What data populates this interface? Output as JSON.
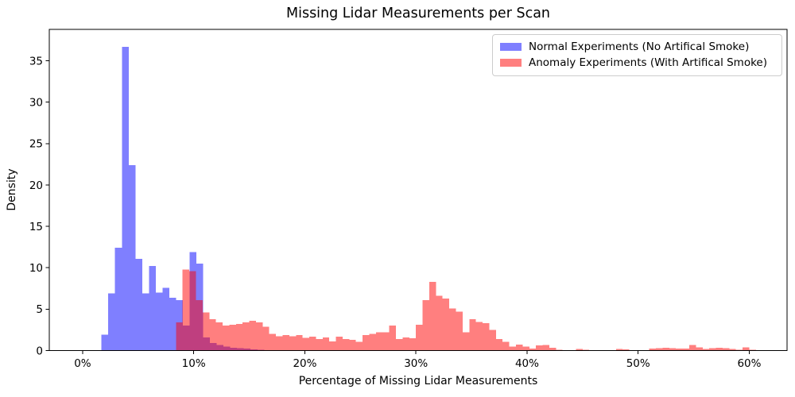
{
  "chart_data": {
    "type": "bar",
    "subtype": "overlaid-histogram",
    "title": "Missing Lidar Measurements per Scan",
    "xlabel": "Percentage of Missing Lidar Measurements",
    "ylabel": "Density",
    "xlim_pct": [
      -3.0,
      63.4
    ],
    "ylim": [
      0,
      38.8
    ],
    "x_ticks_pct": [
      0,
      10,
      20,
      30,
      40,
      50,
      60
    ],
    "x_tick_labels": [
      "0%",
      "10%",
      "20%",
      "30%",
      "40%",
      "50%",
      "60%"
    ],
    "y_ticks": [
      0,
      5,
      10,
      15,
      20,
      25,
      30,
      35
    ],
    "y_tick_labels": [
      "0",
      "5",
      "10",
      "15",
      "20",
      "25",
      "30",
      "35"
    ],
    "grid": false,
    "legend_position": "upper right",
    "series": [
      {
        "name": "Normal Experiments (No Artifical Smoke)",
        "color": "rgba(0,0,255,0.5)",
        "legend_swatch_hex": "#7f7fff",
        "bin_start_pct": 1.7,
        "bin_width_pct": 0.61,
        "densities": [
          1.9,
          6.9,
          12.4,
          36.7,
          22.4,
          11.1,
          6.9,
          10.2,
          7.0,
          7.6,
          6.4,
          6.1,
          3.0,
          11.9,
          10.5,
          1.6,
          0.9,
          0.65,
          0.5,
          0.35,
          0.3,
          0.22,
          0.16,
          0.1
        ]
      },
      {
        "name": "Anomaly Experiments (With Artifical Smoke)",
        "color": "rgba(255,0,0,0.5)",
        "legend_swatch_hex": "#ff7f7f",
        "bin_start_pct": 8.4,
        "bin_width_pct": 0.6,
        "densities": [
          3.4,
          9.8,
          9.6,
          6.1,
          4.6,
          3.8,
          3.4,
          3.0,
          3.1,
          3.2,
          3.4,
          3.6,
          3.4,
          2.9,
          2.0,
          1.75,
          1.85,
          1.75,
          1.85,
          1.55,
          1.7,
          1.4,
          1.6,
          1.1,
          1.7,
          1.4,
          1.3,
          1.05,
          1.85,
          2.0,
          2.2,
          2.2,
          3.0,
          1.4,
          1.6,
          1.5,
          3.1,
          6.1,
          8.3,
          6.6,
          6.3,
          5.1,
          4.7,
          2.2,
          3.8,
          3.45,
          3.3,
          2.5,
          1.4,
          1.05,
          0.5,
          0.73,
          0.5,
          0.26,
          0.6,
          0.67,
          0.35,
          0.1,
          0,
          0,
          0.2,
          0.1,
          0,
          0,
          0,
          0,
          0.2,
          0.15,
          0,
          0,
          0,
          0.25,
          0.3,
          0.35,
          0.3,
          0.25,
          0.25,
          0.65,
          0.4,
          0.2,
          0.3,
          0.35,
          0.3,
          0.2,
          0.1,
          0.4,
          0.1
        ]
      }
    ],
    "overlap_color_hex": "#bf407f"
  }
}
